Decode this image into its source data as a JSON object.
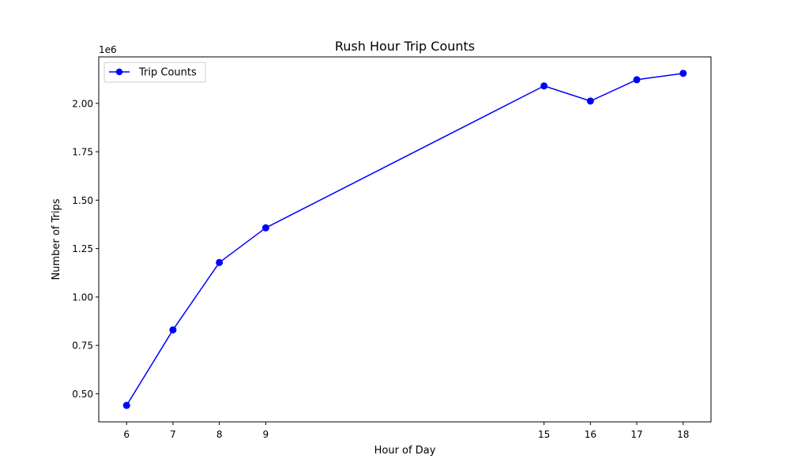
{
  "chart_data": {
    "type": "line",
    "title": "Rush Hour Trip Counts",
    "xlabel": "Hour of Day",
    "ylabel": "Number of Trips",
    "y_offset_label": "1e6",
    "x_ticks": [
      6,
      7,
      8,
      9,
      15,
      16,
      17,
      18
    ],
    "y_ticks": [
      "0.50",
      "0.75",
      "1.00",
      "1.25",
      "1.50",
      "1.75",
      "2.00"
    ],
    "y_tick_values": [
      500000,
      750000,
      1000000,
      1250000,
      1500000,
      1750000,
      2000000
    ],
    "xlim": [
      5.4,
      18.6
    ],
    "ylim": [
      355000,
      2240000
    ],
    "grid": false,
    "legend_position": "upper-left",
    "series": [
      {
        "name": "Trip Counts",
        "color": "#0000ff",
        "marker": "circle",
        "x": [
          6,
          7,
          8,
          9,
          15,
          16,
          17,
          18
        ],
        "y": [
          440000,
          830000,
          1178000,
          1357000,
          2090000,
          2012000,
          2122000,
          2155000
        ]
      }
    ]
  }
}
